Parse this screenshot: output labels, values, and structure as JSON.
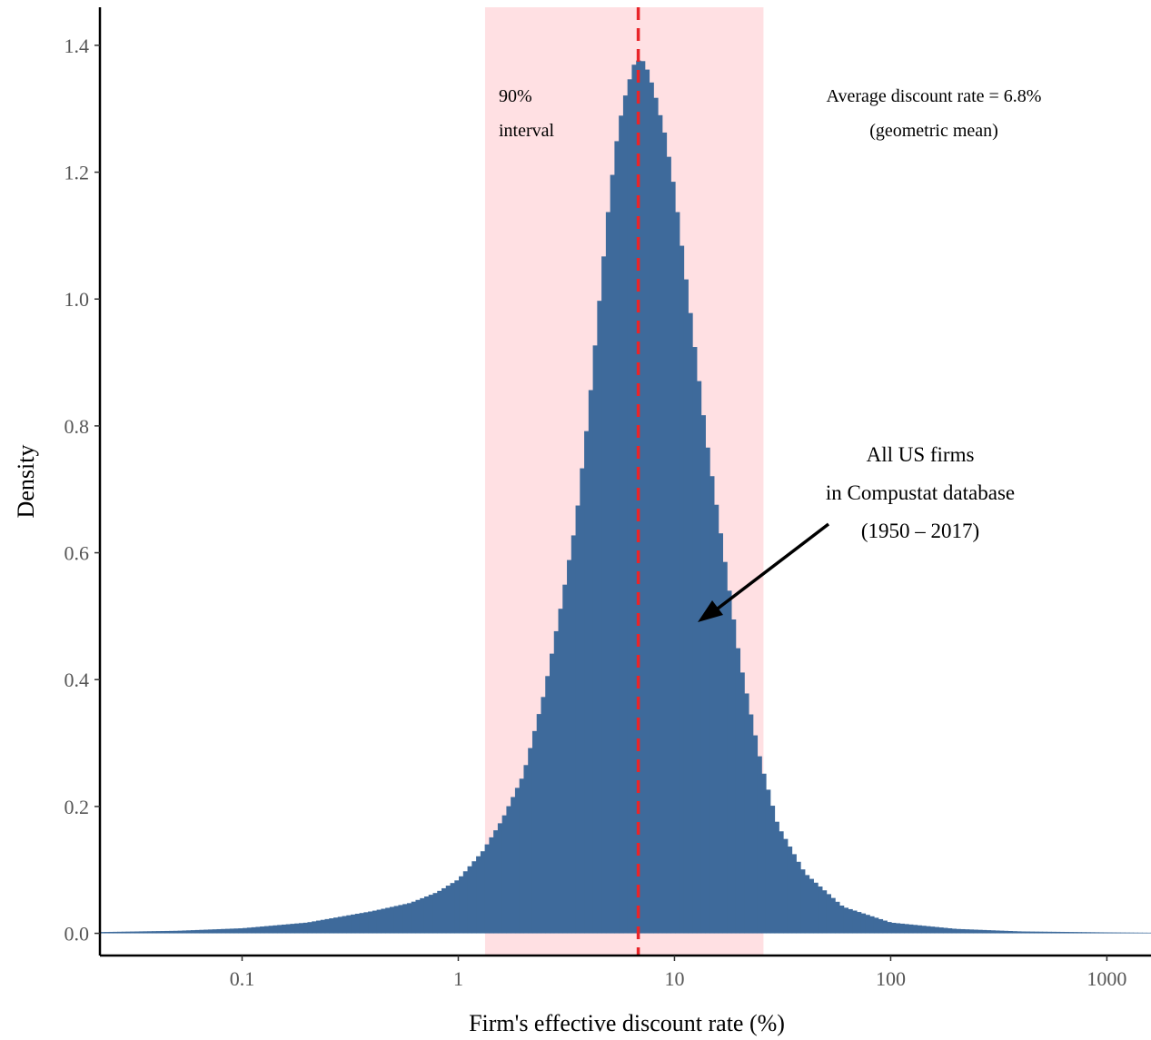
{
  "chart_data": {
    "type": "bar",
    "xlabel": "Firm's effective discount rate (%)",
    "ylabel": "Density",
    "xscale": "log",
    "xlim": [
      0.022,
      1600
    ],
    "ylim": [
      -0.035,
      1.46
    ],
    "xticks": [
      {
        "value": 0.1,
        "label": "0.1"
      },
      {
        "value": 1,
        "label": "1"
      },
      {
        "value": 10,
        "label": "10"
      },
      {
        "value": 100,
        "label": "100"
      },
      {
        "value": 1000,
        "label": "1000"
      }
    ],
    "yticks": [
      {
        "value": 0,
        "label": "0.0"
      },
      {
        "value": 0.2,
        "label": "0.2"
      },
      {
        "value": 0.4,
        "label": "0.4"
      },
      {
        "value": 0.6,
        "label": "0.6"
      },
      {
        "value": 0.8,
        "label": "0.8"
      },
      {
        "value": 1.0,
        "label": "1.0"
      },
      {
        "value": 1.2,
        "label": "1.2"
      },
      {
        "value": 1.4,
        "label": "1.4"
      }
    ],
    "grid": false,
    "colors": {
      "bars": "#3e6a9b",
      "interval": "#ffe0e3",
      "mean_line": "#e8252a",
      "arrow": "#000000"
    },
    "histogram": {
      "bin_width_log10": 0.02,
      "density_profile": [
        {
          "x": 0.022,
          "density": 0.002
        },
        {
          "x": 0.05,
          "density": 0.004
        },
        {
          "x": 0.1,
          "density": 0.008
        },
        {
          "x": 0.2,
          "density": 0.017
        },
        {
          "x": 0.4,
          "density": 0.035
        },
        {
          "x": 0.6,
          "density": 0.048
        },
        {
          "x": 0.8,
          "density": 0.065
        },
        {
          "x": 1.0,
          "density": 0.085
        },
        {
          "x": 1.3,
          "density": 0.13
        },
        {
          "x": 1.6,
          "density": 0.18
        },
        {
          "x": 2.0,
          "density": 0.25
        },
        {
          "x": 2.5,
          "density": 0.38
        },
        {
          "x": 3.0,
          "density": 0.52
        },
        {
          "x": 3.5,
          "density": 0.65
        },
        {
          "x": 4.0,
          "density": 0.82
        },
        {
          "x": 4.5,
          "density": 1.0
        },
        {
          "x": 5.0,
          "density": 1.16
        },
        {
          "x": 5.5,
          "density": 1.27
        },
        {
          "x": 6.0,
          "density": 1.33
        },
        {
          "x": 6.5,
          "density": 1.37
        },
        {
          "x": 7.0,
          "density": 1.38
        },
        {
          "x": 7.5,
          "density": 1.36
        },
        {
          "x": 8.0,
          "density": 1.33
        },
        {
          "x": 9.0,
          "density": 1.26
        },
        {
          "x": 10.0,
          "density": 1.17
        },
        {
          "x": 12.0,
          "density": 0.96
        },
        {
          "x": 14.0,
          "density": 0.78
        },
        {
          "x": 17.0,
          "density": 0.59
        },
        {
          "x": 20.0,
          "density": 0.43
        },
        {
          "x": 25.0,
          "density": 0.27
        },
        {
          "x": 30.0,
          "density": 0.17
        },
        {
          "x": 40.0,
          "density": 0.095
        },
        {
          "x": 60.0,
          "density": 0.042
        },
        {
          "x": 100.0,
          "density": 0.017
        },
        {
          "x": 200.0,
          "density": 0.007
        },
        {
          "x": 400.0,
          "density": 0.003
        },
        {
          "x": 1000.0,
          "density": 0.0015
        },
        {
          "x": 1600.0,
          "density": 0.001
        }
      ]
    },
    "interval_90": {
      "low": 1.33,
      "high": 25.8
    },
    "mean_line_x": 6.8,
    "annotations": {
      "interval_line1": "90%",
      "interval_line2": "interval",
      "mean_line1": "Average discount rate = 6.8%",
      "mean_line2": "(geometric mean)",
      "sample_line1": "All US firms",
      "sample_line2": "in Compustat database",
      "sample_line3": "(1950 – 2017)"
    }
  }
}
